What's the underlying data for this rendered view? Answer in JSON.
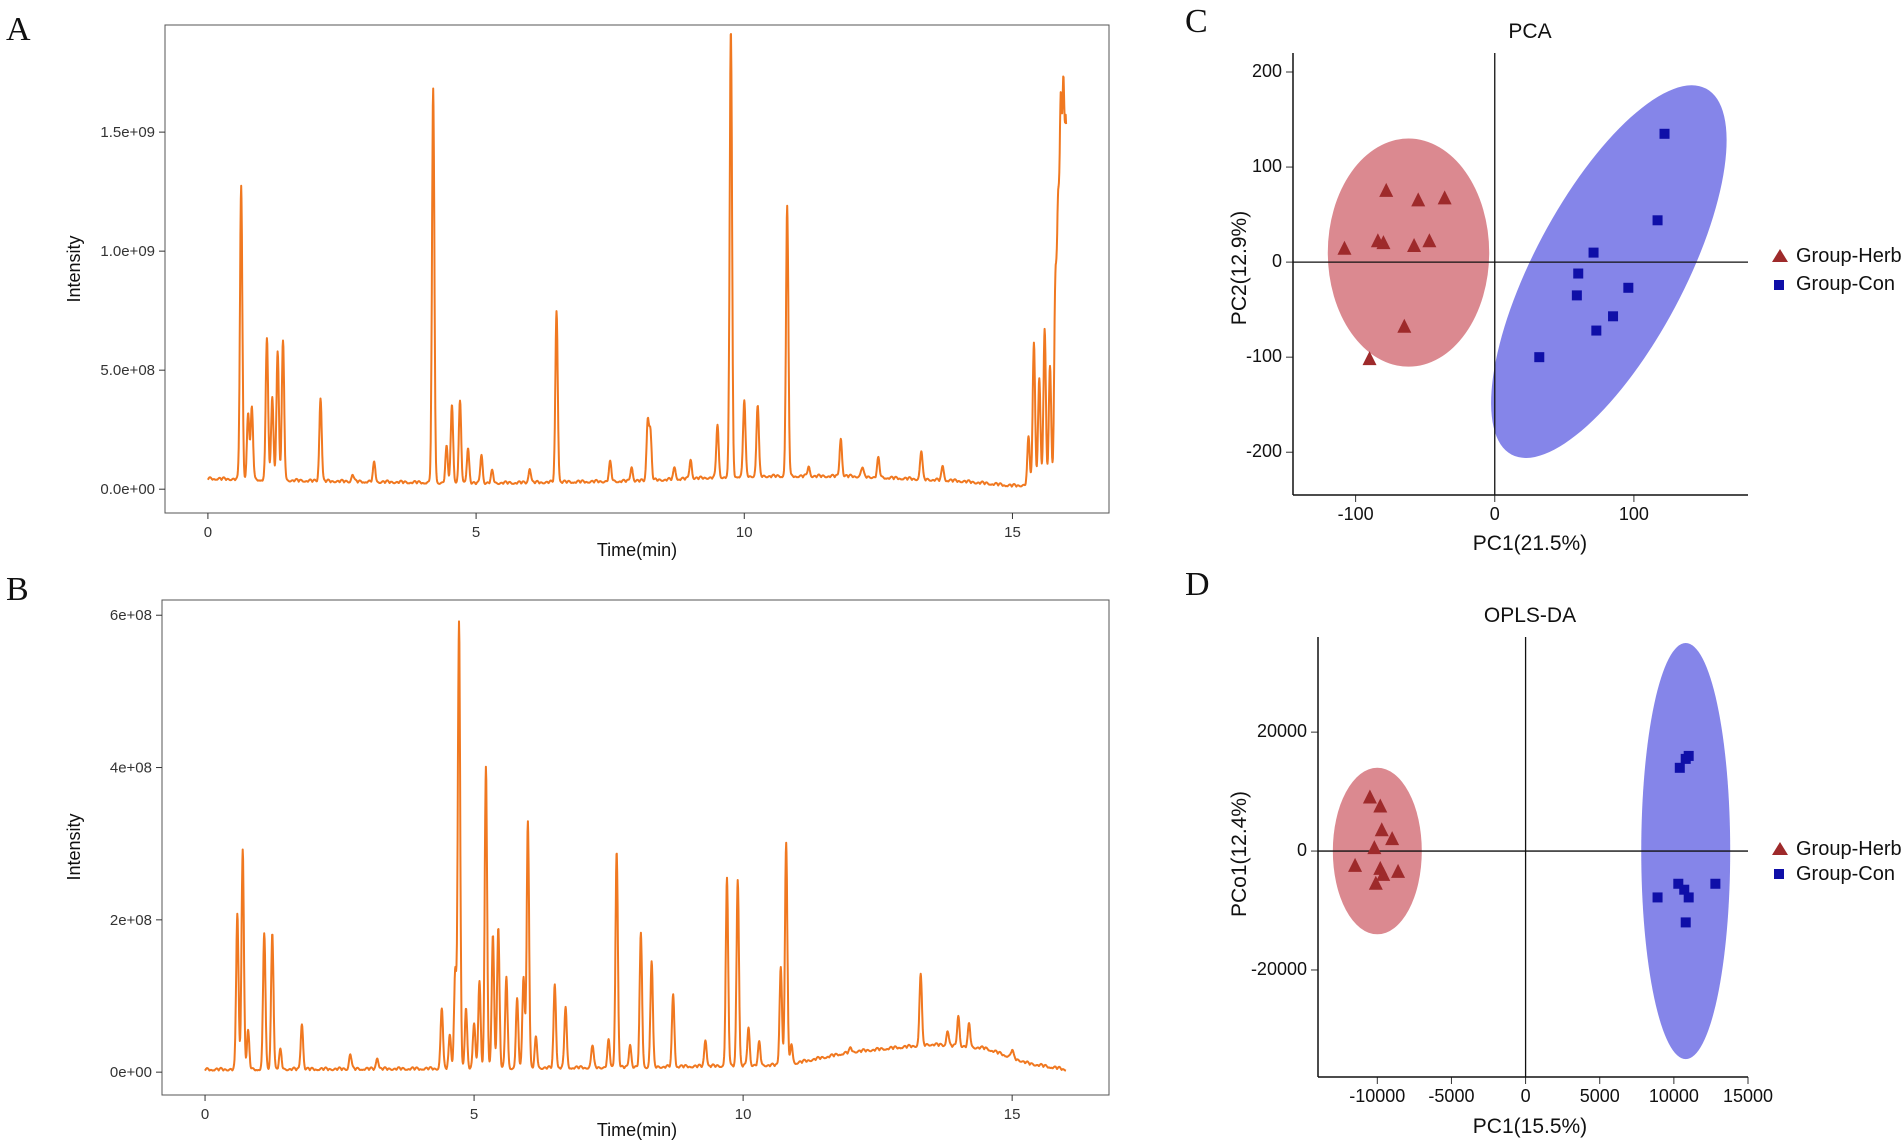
{
  "chart_data": [
    {
      "id": "A",
      "panel_label": "A",
      "type": "line",
      "title": "",
      "xlabel": "Time(min)",
      "ylabel": "Intensity",
      "xlim": [
        -0.8,
        16.8
      ],
      "ylim": [
        -100000000.0,
        1950000000.0
      ],
      "x_ticks": [
        0,
        5,
        10,
        15
      ],
      "x_tick_labels": [
        "0",
        "5",
        "10",
        "15"
      ],
      "y_ticks": [
        0,
        500000000,
        1000000000,
        1500000000
      ],
      "y_tick_labels": [
        "0.0e+00",
        "5.0e+08",
        "1.0e+09",
        "1.5e+09"
      ],
      "color": "#F07820",
      "x_end": 16,
      "baseline": [
        [
          0,
          40000000.0
        ],
        [
          2,
          30000000.0
        ],
        [
          5,
          20000000.0
        ],
        [
          8,
          30000000.0
        ],
        [
          10,
          50000000.0
        ],
        [
          12,
          50000000.0
        ],
        [
          14,
          30000000.0
        ],
        [
          15,
          10000000.0
        ],
        [
          16,
          20000000.0
        ]
      ],
      "peaks": [
        {
          "t": 0.62,
          "h": 1230000000.0
        },
        {
          "t": 0.75,
          "h": 280000000.0
        },
        {
          "t": 0.82,
          "h": 300000000.0
        },
        {
          "t": 1.1,
          "h": 600000000.0
        },
        {
          "t": 1.2,
          "h": 350000000.0
        },
        {
          "t": 1.3,
          "h": 540000000.0
        },
        {
          "t": 1.4,
          "h": 580000000.0
        },
        {
          "t": 2.1,
          "h": 350000000.0
        },
        {
          "t": 2.7,
          "h": 30000000.0
        },
        {
          "t": 3.1,
          "h": 80000000.0
        },
        {
          "t": 4.2,
          "h": 1650000000.0
        },
        {
          "t": 4.45,
          "h": 150000000.0
        },
        {
          "t": 4.55,
          "h": 330000000.0
        },
        {
          "t": 4.7,
          "h": 340000000.0
        },
        {
          "t": 4.85,
          "h": 150000000.0
        },
        {
          "t": 5.1,
          "h": 120000000.0
        },
        {
          "t": 5.3,
          "h": 50000000.0
        },
        {
          "t": 6.0,
          "h": 60000000.0
        },
        {
          "t": 6.5,
          "h": 720000000.0
        },
        {
          "t": 7.5,
          "h": 80000000.0
        },
        {
          "t": 7.9,
          "h": 60000000.0
        },
        {
          "t": 8.2,
          "h": 250000000.0
        },
        {
          "t": 8.25,
          "h": 200000000.0
        },
        {
          "t": 8.7,
          "h": 50000000.0
        },
        {
          "t": 9.0,
          "h": 80000000.0
        },
        {
          "t": 9.5,
          "h": 220000000.0
        },
        {
          "t": 9.75,
          "h": 1880000000.0
        },
        {
          "t": 10.0,
          "h": 320000000.0
        },
        {
          "t": 10.25,
          "h": 300000000.0
        },
        {
          "t": 10.8,
          "h": 1130000000.0
        },
        {
          "t": 11.2,
          "h": 40000000.0
        },
        {
          "t": 11.8,
          "h": 160000000.0
        },
        {
          "t": 12.2,
          "h": 40000000.0
        },
        {
          "t": 12.5,
          "h": 80000000.0
        },
        {
          "t": 13.3,
          "h": 120000000.0
        },
        {
          "t": 13.7,
          "h": 60000000.0
        },
        {
          "t": 15.3,
          "h": 200000000.0
        },
        {
          "t": 15.4,
          "h": 600000000.0
        },
        {
          "t": 15.5,
          "h": 450000000.0
        },
        {
          "t": 15.6,
          "h": 650000000.0
        },
        {
          "t": 15.7,
          "h": 500000000.0
        },
        {
          "t": 15.8,
          "h": 800000000.0
        },
        {
          "t": 15.85,
          "h": 1050000000.0
        },
        {
          "t": 15.9,
          "h": 1450000000.0
        },
        {
          "t": 15.95,
          "h": 1500000000.0
        },
        {
          "t": 16.0,
          "h": 1400000000.0
        }
      ]
    },
    {
      "id": "B",
      "panel_label": "B",
      "type": "line",
      "title": "",
      "xlabel": "Time(min)",
      "ylabel": "Intensity",
      "xlim": [
        -0.8,
        16.8
      ],
      "ylim": [
        -30000000.0,
        620000000.0
      ],
      "x_ticks": [
        0,
        5,
        10,
        15
      ],
      "x_tick_labels": [
        "0",
        "5",
        "10",
        "15"
      ],
      "y_ticks": [
        0,
        200000000,
        400000000,
        600000000
      ],
      "y_tick_labels": [
        "0e+00",
        "2e+08",
        "4e+08",
        "6e+08"
      ],
      "color": "#F07820",
      "x_end": 16,
      "baseline": [
        [
          0,
          2000000.0
        ],
        [
          4,
          3000000.0
        ],
        [
          8,
          5000000.0
        ],
        [
          10.8,
          8000000.0
        ],
        [
          12,
          25000000.0
        ],
        [
          13.5,
          35000000.0
        ],
        [
          14.5,
          30000000.0
        ],
        [
          15.3,
          10000000.0
        ],
        [
          16,
          2000000.0
        ]
      ],
      "peaks": [
        {
          "t": 0.6,
          "h": 205000000.0
        },
        {
          "t": 0.7,
          "h": 290000000.0
        },
        {
          "t": 0.8,
          "h": 50000000.0
        },
        {
          "t": 1.1,
          "h": 180000000.0
        },
        {
          "t": 1.25,
          "h": 180000000.0
        },
        {
          "t": 1.4,
          "h": 25000000.0
        },
        {
          "t": 1.8,
          "h": 60000000.0
        },
        {
          "t": 2.7,
          "h": 20000000.0
        },
        {
          "t": 3.2,
          "h": 15000000.0
        },
        {
          "t": 4.4,
          "h": 80000000.0
        },
        {
          "t": 4.55,
          "h": 45000000.0
        },
        {
          "t": 4.65,
          "h": 130000000.0
        },
        {
          "t": 4.72,
          "h": 585000000.0
        },
        {
          "t": 4.85,
          "h": 80000000.0
        },
        {
          "t": 5.0,
          "h": 60000000.0
        },
        {
          "t": 5.1,
          "h": 115000000.0
        },
        {
          "t": 5.22,
          "h": 395000000.0
        },
        {
          "t": 5.35,
          "h": 175000000.0
        },
        {
          "t": 5.45,
          "h": 185000000.0
        },
        {
          "t": 5.6,
          "h": 120000000.0
        },
        {
          "t": 5.8,
          "h": 90000000.0
        },
        {
          "t": 5.92,
          "h": 120000000.0
        },
        {
          "t": 6.0,
          "h": 325000000.0
        },
        {
          "t": 6.15,
          "h": 40000000.0
        },
        {
          "t": 6.5,
          "h": 110000000.0
        },
        {
          "t": 6.7,
          "h": 80000000.0
        },
        {
          "t": 7.2,
          "h": 30000000.0
        },
        {
          "t": 7.5,
          "h": 35000000.0
        },
        {
          "t": 7.65,
          "h": 285000000.0
        },
        {
          "t": 7.9,
          "h": 30000000.0
        },
        {
          "t": 8.1,
          "h": 175000000.0
        },
        {
          "t": 8.3,
          "h": 140000000.0
        },
        {
          "t": 8.7,
          "h": 95000000.0
        },
        {
          "t": 9.3,
          "h": 35000000.0
        },
        {
          "t": 9.7,
          "h": 245000000.0
        },
        {
          "t": 9.9,
          "h": 245000000.0
        },
        {
          "t": 10.1,
          "h": 50000000.0
        },
        {
          "t": 10.3,
          "h": 30000000.0
        },
        {
          "t": 10.7,
          "h": 130000000.0
        },
        {
          "t": 10.8,
          "h": 290000000.0
        },
        {
          "t": 10.9,
          "h": 25000000.0
        },
        {
          "t": 12.0,
          "h": 5000000.0
        },
        {
          "t": 13.3,
          "h": 95000000.0
        },
        {
          "t": 13.8,
          "h": 20000000.0
        },
        {
          "t": 14.0,
          "h": 40000000.0
        },
        {
          "t": 14.2,
          "h": 30000000.0
        },
        {
          "t": 15.0,
          "h": 10000000.0
        }
      ]
    },
    {
      "id": "C",
      "panel_label": "C",
      "type": "scatter",
      "title": "PCA",
      "xlabel": "PC1(21.5%)",
      "ylabel": "PC2(12.9%)",
      "xlim": [
        -145,
        182
      ],
      "ylim": [
        -245,
        220
      ],
      "x_ticks": [
        -100,
        0,
        100
      ],
      "x_tick_labels": [
        "-100",
        "0",
        "100"
      ],
      "y_ticks": [
        -200,
        -100,
        0,
        100,
        200
      ],
      "y_tick_labels": [
        "-200",
        "-100",
        "0",
        "100",
        "200"
      ],
      "legend_position": "right",
      "series": [
        {
          "name": "Group-Herb",
          "marker": "triangle",
          "color": "#9E2A2B",
          "ellipse": {
            "cx": -62,
            "cy": 10,
            "rx": 58,
            "ry": 120,
            "angle_deg": 0,
            "color": "#D9838A"
          },
          "points": [
            [
              -78,
              75
            ],
            [
              -55,
              65
            ],
            [
              -36,
              67
            ],
            [
              -84,
              22
            ],
            [
              -80,
              20
            ],
            [
              -47,
              22
            ],
            [
              -58,
              17
            ],
            [
              -108,
              14
            ],
            [
              -65,
              -68
            ],
            [
              -90,
              -102
            ]
          ]
        },
        {
          "name": "Group-Con",
          "marker": "square",
          "color": "#0F0FA8",
          "ellipse": {
            "cx": 82,
            "cy": -10,
            "rx": 54,
            "ry": 218,
            "angle_deg": 28,
            "color": "#7E7EE8"
          },
          "points": [
            [
              122,
              135
            ],
            [
              117,
              44
            ],
            [
              71,
              10
            ],
            [
              60,
              -12
            ],
            [
              59,
              -35
            ],
            [
              96,
              -27
            ],
            [
              85,
              -57
            ],
            [
              73,
              -72
            ],
            [
              32,
              -100
            ]
          ]
        }
      ]
    },
    {
      "id": "D",
      "panel_label": "D",
      "type": "scatter",
      "title": "OPLS-DA",
      "xlabel": "PC1(15.5%)",
      "ylabel": "PCo1(12.4%)",
      "xlim": [
        -14000,
        15000
      ],
      "ylim": [
        -38000,
        36000
      ],
      "x_ticks": [
        -10000,
        -5000,
        0,
        5000,
        10000,
        15000
      ],
      "x_tick_labels": [
        "-10000",
        "-5000",
        "0",
        "5000",
        "10000",
        "15000"
      ],
      "y_ticks": [
        -20000,
        0,
        20000
      ],
      "y_tick_labels": [
        "-20000",
        "0",
        "20000"
      ],
      "legend_position": "right",
      "series": [
        {
          "name": "Group-Herb",
          "marker": "triangle",
          "color": "#9E2A2B",
          "ellipse": {
            "cx": -10000,
            "cy": 0,
            "rx": 3000,
            "ry": 14000,
            "angle_deg": 0,
            "color": "#D9838A"
          },
          "points": [
            [
              -10500,
              9000
            ],
            [
              -9800,
              7500
            ],
            [
              -9700,
              3500
            ],
            [
              -9000,
              2000
            ],
            [
              -10200,
              500
            ],
            [
              -11500,
              -2500
            ],
            [
              -9800,
              -3000
            ],
            [
              -9600,
              -4000
            ],
            [
              -8600,
              -3500
            ],
            [
              -10100,
              -5500
            ]
          ]
        },
        {
          "name": "Group-Con",
          "marker": "square",
          "color": "#0F0FA8",
          "ellipse": {
            "cx": 10800,
            "cy": 0,
            "rx": 3000,
            "ry": 35000,
            "angle_deg": 0,
            "color": "#7E7EE8"
          },
          "points": [
            [
              11000,
              16000
            ],
            [
              10800,
              15500
            ],
            [
              10400,
              14000
            ],
            [
              10300,
              -5500
            ],
            [
              12800,
              -5500
            ],
            [
              10700,
              -6500
            ],
            [
              11000,
              -7800
            ],
            [
              8900,
              -7800
            ],
            [
              10800,
              -12000
            ]
          ]
        }
      ]
    }
  ]
}
